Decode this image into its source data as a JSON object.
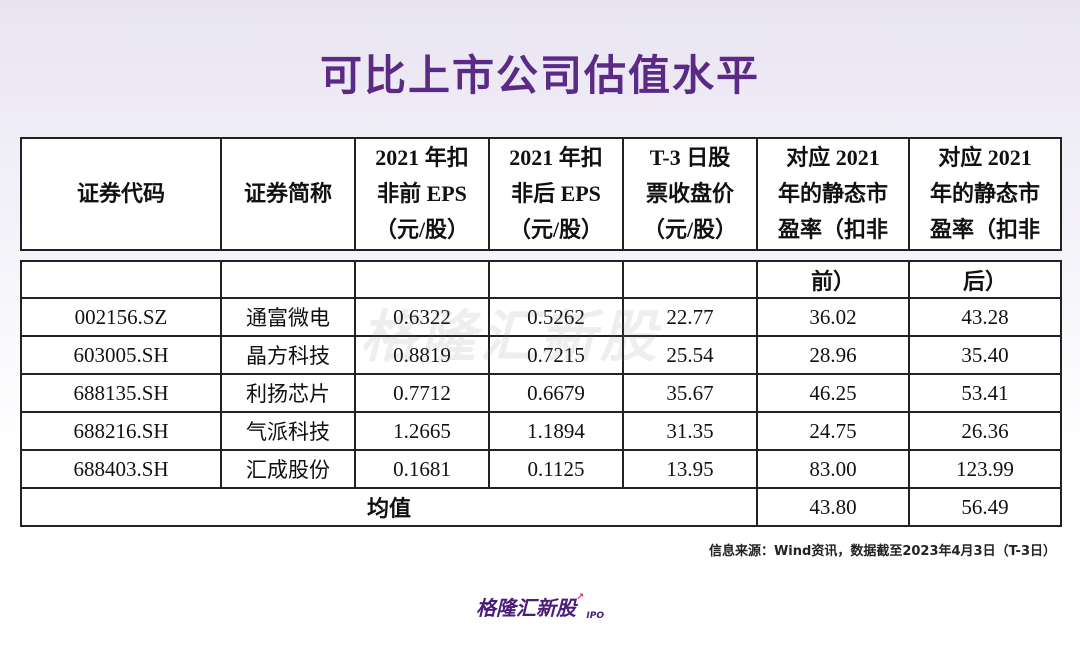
{
  "title": "可比上市公司估值水平",
  "header": {
    "col1": "证券代码",
    "col2": "证券简称",
    "col3": [
      "2021 年扣",
      "非前 EPS",
      "（元/股）"
    ],
    "col4": [
      "2021 年扣",
      "非后 EPS",
      "（元/股）"
    ],
    "col5": [
      "T-3 日股",
      "票收盘价",
      "（元/股）"
    ],
    "col6": [
      "对应 2021",
      "年的静态市",
      "盈率（扣非"
    ],
    "col7": [
      "对应 2021",
      "年的静态市",
      "盈率（扣非"
    ],
    "col6_cont": "前）",
    "col7_cont": "后）"
  },
  "rows": [
    {
      "code": "002156.SZ",
      "name": "通富微电",
      "eps_pre": "0.6322",
      "eps_post": "0.5262",
      "price": "22.77",
      "pe_pre": "36.02",
      "pe_post": "43.28"
    },
    {
      "code": "603005.SH",
      "name": "晶方科技",
      "eps_pre": "0.8819",
      "eps_post": "0.7215",
      "price": "25.54",
      "pe_pre": "28.96",
      "pe_post": "35.40"
    },
    {
      "code": "688135.SH",
      "name": "利扬芯片",
      "eps_pre": "0.7712",
      "eps_post": "0.6679",
      "price": "35.67",
      "pe_pre": "46.25",
      "pe_post": "53.41"
    },
    {
      "code": "688216.SH",
      "name": "气派科技",
      "eps_pre": "1.2665",
      "eps_post": "1.1894",
      "price": "31.35",
      "pe_pre": "24.75",
      "pe_post": "26.36"
    },
    {
      "code": "688403.SH",
      "name": "汇成股份",
      "eps_pre": "0.1681",
      "eps_post": "0.1125",
      "price": "13.95",
      "pe_pre": "83.00",
      "pe_post": "123.99"
    }
  ],
  "average": {
    "label": "均值",
    "pe_pre": "43.80",
    "pe_post": "56.49"
  },
  "source": "信息来源：Wind资讯，数据截至2023年4月3日（T-3日）",
  "watermark": "格隆汇新股",
  "logo": {
    "text": "格隆汇新股",
    "sub": "IPO"
  }
}
